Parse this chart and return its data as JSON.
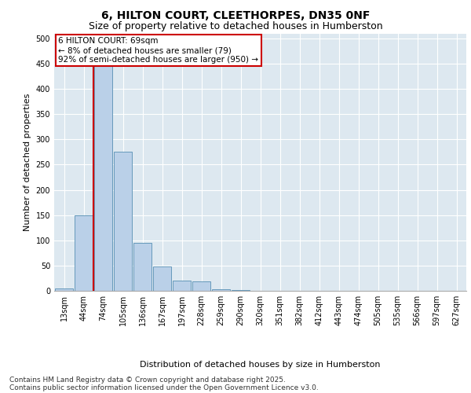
{
  "title_line1": "6, HILTON COURT, CLEETHORPES, DN35 0NF",
  "title_line2": "Size of property relative to detached houses in Humberston",
  "xlabel": "Distribution of detached houses by size in Humberston",
  "ylabel": "Number of detached properties",
  "categories": [
    "13sqm",
    "44sqm",
    "74sqm",
    "105sqm",
    "136sqm",
    "167sqm",
    "197sqm",
    "228sqm",
    "259sqm",
    "290sqm",
    "320sqm",
    "351sqm",
    "382sqm",
    "412sqm",
    "443sqm",
    "474sqm",
    "505sqm",
    "535sqm",
    "566sqm",
    "597sqm",
    "627sqm"
  ],
  "values": [
    5,
    150,
    455,
    275,
    95,
    48,
    20,
    18,
    3,
    2,
    0,
    0,
    0,
    0,
    0,
    0,
    0,
    0,
    0,
    0,
    0
  ],
  "bar_color": "#bad0e8",
  "bar_edge_color": "#6699bb",
  "vline_x": 1.5,
  "vline_color": "#cc0000",
  "annotation_text": "6 HILTON COURT: 69sqm\n← 8% of detached houses are smaller (79)\n92% of semi-detached houses are larger (950) →",
  "annotation_box_color": "#cc0000",
  "ylim": [
    0,
    510
  ],
  "yticks": [
    0,
    50,
    100,
    150,
    200,
    250,
    300,
    350,
    400,
    450,
    500
  ],
  "background_color": "#dde8f0",
  "grid_color": "#ffffff",
  "footer_line1": "Contains HM Land Registry data © Crown copyright and database right 2025.",
  "footer_line2": "Contains public sector information licensed under the Open Government Licence v3.0.",
  "title_fontsize": 10,
  "subtitle_fontsize": 9,
  "axis_label_fontsize": 8,
  "tick_fontsize": 7,
  "annotation_fontsize": 7.5,
  "footer_fontsize": 6.5
}
